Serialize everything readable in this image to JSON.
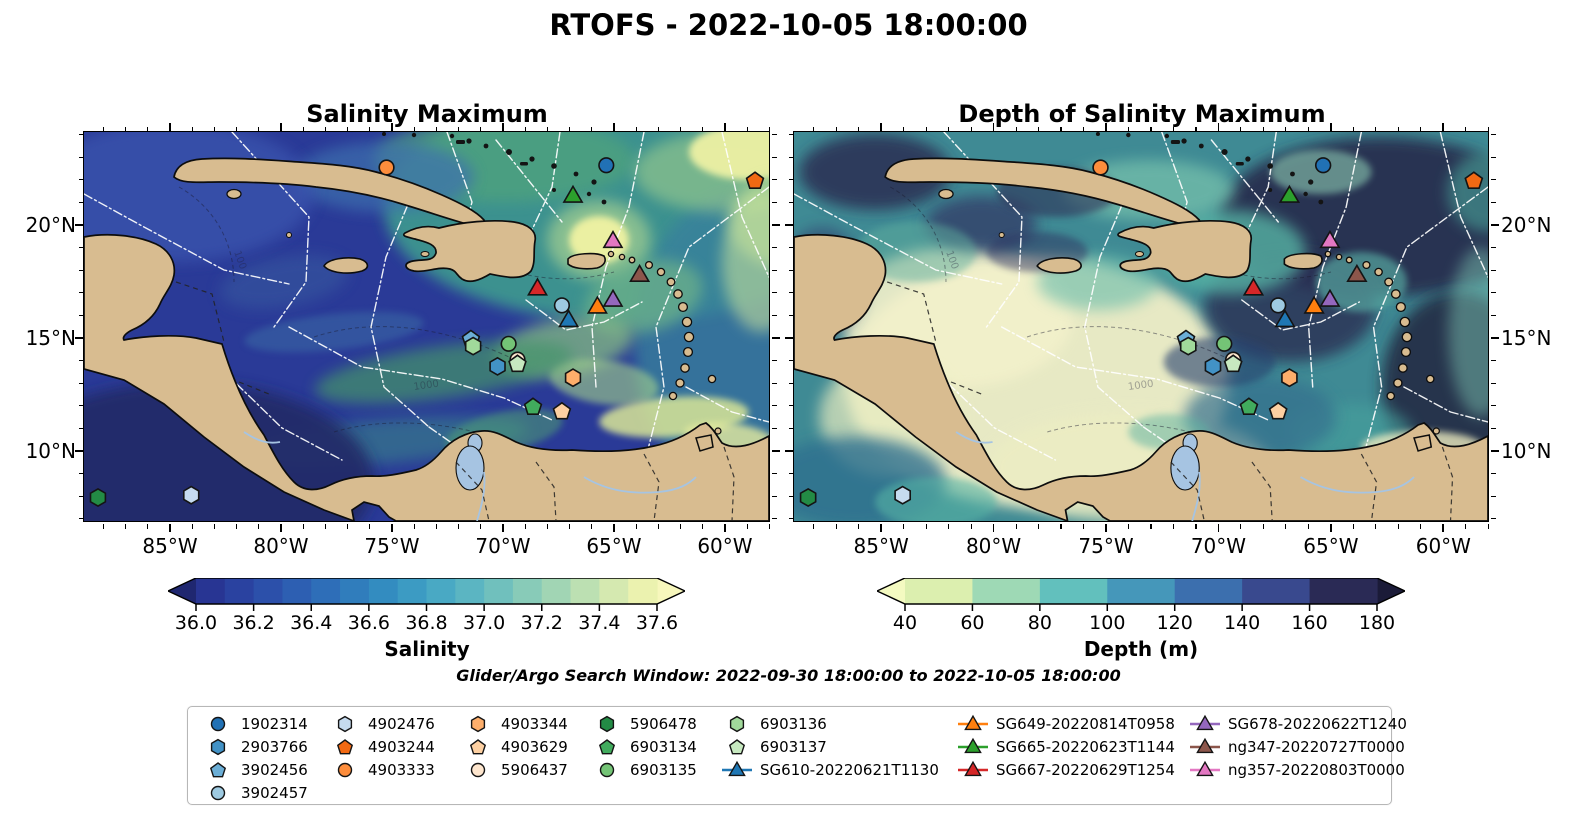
{
  "figure": {
    "title": "RTOFS - 2022-10-05 18:00:00",
    "search_window": "Glider/Argo Search Window: 2022-09-30 18:00:00 to 2022-10-05 18:00:00"
  },
  "chart_data": {
    "type": "heatmap",
    "subtype": "geographic-fields-with-platform-positions",
    "region": "Caribbean Sea and western tropical Atlantic",
    "extent": {
      "lon_range": [
        -88.83,
        -57.97
      ],
      "lat_range": [
        6.86,
        24.07
      ]
    },
    "axis": {
      "lon_major_ticks": [
        -85,
        -80,
        -75,
        -70,
        -65,
        -60
      ],
      "lon_tick_labels": [
        "85°W",
        "80°W",
        "75°W",
        "70°W",
        "65°W",
        "60°W"
      ],
      "lat_major_ticks": [
        20,
        15,
        10
      ],
      "lat_tick_labels": [
        "20°N",
        "15°N",
        "10°N"
      ],
      "minor_tick_interval_deg": 1
    },
    "panels": [
      {
        "title": "Salinity Maximum",
        "field": "salinity maximum",
        "colorbar": {
          "label": "Salinity",
          "tick_labels": [
            "36.0",
            "36.2",
            "36.4",
            "36.6",
            "36.8",
            "37.0",
            "37.2",
            "37.4",
            "37.6"
          ],
          "range": [
            36.0,
            37.6
          ],
          "extend": "both",
          "segment_colors": [
            "#283593",
            "#2a42a0",
            "#2c50aa",
            "#2d5fb2",
            "#2e6eb8",
            "#307dbc",
            "#338cc0",
            "#3c9bc3",
            "#49a9c4",
            "#5bb5c2",
            "#70c0bd",
            "#88cbb8",
            "#a1d5b4",
            "#bce0b2",
            "#d5e9b0",
            "#ebf2af"
          ],
          "under_color": "#1f2770",
          "over_color": "#f7f7bc"
        }
      },
      {
        "title": "Depth of Salinity Maximum",
        "field": "depth of salinity maximum",
        "colorbar": {
          "label": "Depth (m)",
          "tick_labels": [
            "40",
            "60",
            "80",
            "100",
            "120",
            "140",
            "160",
            "180"
          ],
          "range": [
            40,
            180
          ],
          "extend": "both",
          "segment_colors": [
            "#dcefaf",
            "#9ed9b5",
            "#62c0bd",
            "#4597ba",
            "#3c6fae",
            "#39498e",
            "#2a2a55"
          ],
          "under_color": "#f4fac1",
          "over_color": "#1b1b38"
        }
      }
    ],
    "markers": [
      {
        "id": "1902314",
        "type": "argo",
        "shape": "circle",
        "color": "#2171b5",
        "lon": -65.3,
        "lat": 22.6
      },
      {
        "id": "2903766",
        "type": "argo",
        "shape": "hexagon",
        "color": "#4292c6",
        "lon": -70.2,
        "lat": 13.7
      },
      {
        "id": "3902456",
        "type": "argo",
        "shape": "pentagon",
        "color": "#6baed6",
        "lon": -71.4,
        "lat": 14.9
      },
      {
        "id": "3902457",
        "type": "argo",
        "shape": "circle",
        "color": "#9ecae1",
        "lon": -67.3,
        "lat": 16.4
      },
      {
        "id": "4902476",
        "type": "argo",
        "shape": "hexagon",
        "color": "#c6dbef",
        "lon": -84.0,
        "lat": 8.0
      },
      {
        "id": "4903244",
        "type": "argo",
        "shape": "pentagon",
        "color": "#f16913",
        "lon": -58.6,
        "lat": 21.9
      },
      {
        "id": "4903333",
        "type": "argo",
        "shape": "circle",
        "color": "#fd8d3c",
        "lon": -75.2,
        "lat": 22.5
      },
      {
        "id": "4903344",
        "type": "argo",
        "shape": "hexagon",
        "color": "#fdae6b",
        "lon": -66.8,
        "lat": 13.2
      },
      {
        "id": "4903629",
        "type": "argo",
        "shape": "pentagon",
        "color": "#fdd0a2",
        "lon": -67.3,
        "lat": 11.7
      },
      {
        "id": "5906437",
        "type": "argo",
        "shape": "circle",
        "color": "#fee6ce",
        "lon": -69.3,
        "lat": 14.0
      },
      {
        "id": "5906478",
        "type": "argo",
        "shape": "hexagon",
        "color": "#238b45",
        "lon": -88.2,
        "lat": 7.9
      },
      {
        "id": "6903134",
        "type": "argo",
        "shape": "pentagon",
        "color": "#41ab5d",
        "lon": -68.6,
        "lat": 11.9
      },
      {
        "id": "6903135",
        "type": "argo",
        "shape": "circle",
        "color": "#74c476",
        "lon": -69.7,
        "lat": 14.7
      },
      {
        "id": "6903136",
        "type": "argo",
        "shape": "hexagon",
        "color": "#a1d99b",
        "lon": -71.3,
        "lat": 14.6
      },
      {
        "id": "6903137",
        "type": "argo",
        "shape": "pentagon",
        "color": "#c7e9c0",
        "lon": -69.3,
        "lat": 13.8
      },
      {
        "id": "SG610-20220621T1130",
        "type": "glider",
        "shape": "triangle",
        "color": "#1f77b4",
        "lon": -67.0,
        "lat": 15.7
      },
      {
        "id": "SG649-20220814T0958",
        "type": "glider",
        "shape": "triangle",
        "color": "#ff7f0e",
        "lon": -65.7,
        "lat": 16.3
      },
      {
        "id": "SG665-20220623T1144",
        "type": "glider",
        "shape": "triangle",
        "color": "#2ca02c",
        "lon": -66.8,
        "lat": 21.2
      },
      {
        "id": "SG667-20220629T1254",
        "type": "glider",
        "shape": "triangle",
        "color": "#d62728",
        "lon": -68.4,
        "lat": 17.1
      },
      {
        "id": "SG678-20220622T1240",
        "type": "glider",
        "shape": "triangle",
        "color": "#9467bd",
        "lon": -65.0,
        "lat": 16.6
      },
      {
        "id": "ng347-20220727T0000",
        "type": "glider",
        "shape": "triangle",
        "color": "#8c564b",
        "lon": -63.8,
        "lat": 17.7
      },
      {
        "id": "ng357-20220803T0000",
        "type": "glider",
        "shape": "triangle",
        "color": "#e377c2",
        "lon": -65.0,
        "lat": 19.2
      }
    ],
    "style": {
      "land_color": "#d8bc90",
      "coast_color": "#0d0d0d",
      "lake_river_color": "#a6c4e2",
      "eez_line_color": "#ffffff",
      "contour_label": "1000"
    }
  },
  "legend": {
    "columns": [
      [
        "1902314",
        "2903766",
        "3902456",
        "3902457"
      ],
      [
        "4902476",
        "4903244",
        "4903333"
      ],
      [
        "4903344",
        "4903629",
        "5906437"
      ],
      [
        "5906478",
        "6903134",
        "6903135"
      ],
      [
        "6903136",
        "6903137",
        "SG610-20220621T1130"
      ],
      [
        "SG649-20220814T0958",
        "SG665-20220623T1144",
        "SG667-20220629T1254"
      ],
      [
        "SG678-20220622T1240",
        "ng347-20220727T0000",
        "ng357-20220803T0000"
      ]
    ]
  }
}
